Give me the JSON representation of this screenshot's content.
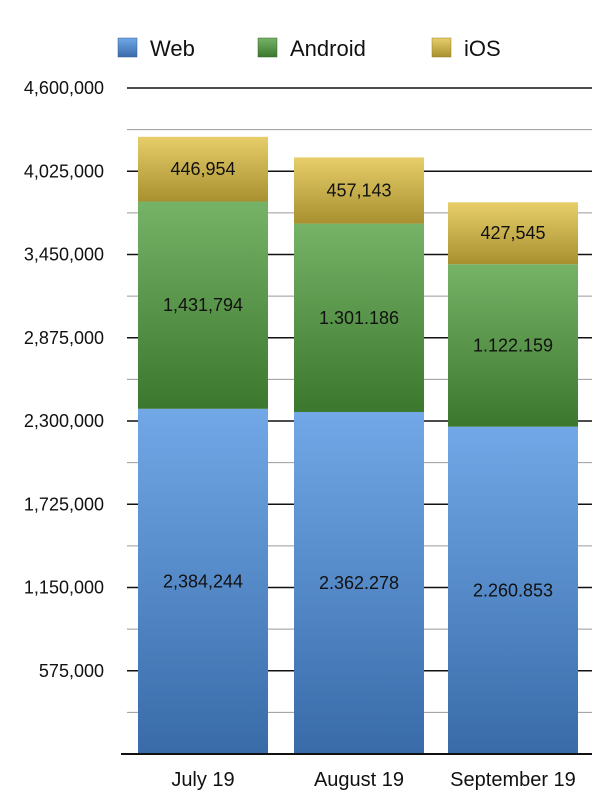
{
  "chart_data": {
    "type": "bar",
    "stacked": true,
    "categories": [
      "July 19",
      "August 19",
      "September 19"
    ],
    "series": [
      {
        "name": "Web",
        "color": "#4a8fe0",
        "values": [
          2384244,
          2362278,
          2260853
        ],
        "labels": [
          "2,384,244",
          "2.362.278",
          "2.260.853"
        ]
      },
      {
        "name": "Android",
        "color": "#4f9e3c",
        "values": [
          1431794,
          1301186,
          1122159
        ],
        "labels": [
          "1,431,794",
          "1.301.186",
          "1.122.159"
        ]
      },
      {
        "name": "iOS",
        "color": "#e0c040",
        "values": [
          446954,
          457143,
          427545
        ],
        "labels": [
          "446,954",
          "457,143",
          "427,545"
        ]
      }
    ],
    "yticks": [
      {
        "value": 575000,
        "label": "575,000"
      },
      {
        "value": 1150000,
        "label": "1,150,000"
      },
      {
        "value": 1725000,
        "label": "1,725,000"
      },
      {
        "value": 2300000,
        "label": "2,300,000"
      },
      {
        "value": 2875000,
        "label": "2,875,000"
      },
      {
        "value": 3450000,
        "label": "3,450,000"
      },
      {
        "value": 4025000,
        "label": "4,025,000"
      },
      {
        "value": 4600000,
        "label": "4,600,000"
      }
    ],
    "ylim": [
      0,
      4600000
    ],
    "minor_gridlines": true,
    "grid": true,
    "legend_position": "top",
    "title": "",
    "xlabel": "",
    "ylabel": ""
  }
}
